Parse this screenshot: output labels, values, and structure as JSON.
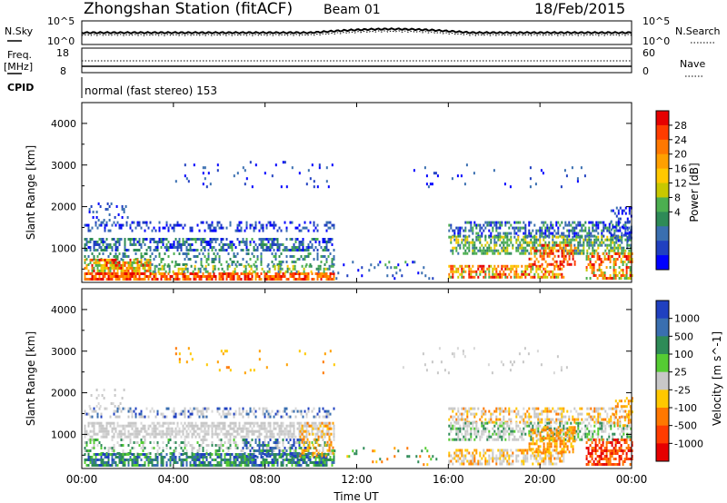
{
  "header": {
    "title": "Zhongshan Station (fitACF)",
    "beam": "Beam 01",
    "date": "18/Feb/2015"
  },
  "noise_panel": {
    "left_label": "N.Sky",
    "right_label": "N.Search",
    "left_ticks": [
      "10^5",
      "10^0"
    ],
    "right_ticks": [
      "10^5",
      "10^0"
    ]
  },
  "freq_panel": {
    "left_label_1": "Freq.",
    "left_label_2": "[MHz]",
    "left_ticks": [
      "18",
      "8"
    ],
    "right_label": "Nave",
    "right_ticks": [
      "60",
      "0"
    ]
  },
  "cpid": {
    "label": "CPID",
    "mode": "normal (fast stereo) 153"
  },
  "time_axis": {
    "label": "Time UT",
    "ticks": [
      "00:00",
      "04:00",
      "08:00",
      "12:00",
      "16:00",
      "20:00",
      "00:00"
    ]
  },
  "power_colorbar": {
    "label": "Power [dB]",
    "ticks": [
      "28",
      "24",
      "20",
      "16",
      "12",
      "8",
      "4"
    ],
    "colors": [
      "#e60000",
      "#ff3c00",
      "#ff7800",
      "#ffa000",
      "#ffc800",
      "#c8c800",
      "#4caf50",
      "#2e8b57",
      "#3a6fb0",
      "#2040c0",
      "#0000ff"
    ]
  },
  "velocity_colorbar": {
    "label": "Velocity [m s^-1]",
    "ticks": [
      "1000",
      "500",
      "100",
      "25",
      "-25",
      "-100",
      "-500",
      "-1000"
    ],
    "colors": [
      "#2040c0",
      "#3a6fb0",
      "#2e8b57",
      "#55cc33",
      "#c8c8c8",
      "#ffc800",
      "#ff7800",
      "#ff3c00",
      "#e60000"
    ]
  },
  "chart_data": [
    {
      "type": "heatmap",
      "title": "Power",
      "xlabel": "Time UT",
      "ylabel": "Slant Range [km]",
      "x_ticks": [
        "00:00",
        "04:00",
        "08:00",
        "12:00",
        "16:00",
        "20:00",
        "00:00"
      ],
      "y_ticks": [
        1000,
        2000,
        3000,
        4000
      ],
      "xlim_hours": [
        0,
        24
      ],
      "ylim_km": [
        180,
        4500
      ],
      "colorbar": {
        "label": "Power [dB]",
        "ticks": [
          4,
          8,
          12,
          16,
          20,
          24,
          28
        ]
      }
    },
    {
      "type": "heatmap",
      "title": "Velocity",
      "xlabel": "Time UT",
      "ylabel": "Slant Range [km]",
      "x_ticks": [
        "00:00",
        "04:00",
        "08:00",
        "12:00",
        "16:00",
        "20:00",
        "00:00"
      ],
      "y_ticks": [
        1000,
        2000,
        3000,
        4000
      ],
      "xlim_hours": [
        0,
        24
      ],
      "ylim_km": [
        180,
        4500
      ],
      "colorbar": {
        "label": "Velocity [m s^-1]",
        "ticks": [
          1000,
          500,
          100,
          25,
          -25,
          -100,
          -500,
          -1000
        ]
      }
    }
  ]
}
